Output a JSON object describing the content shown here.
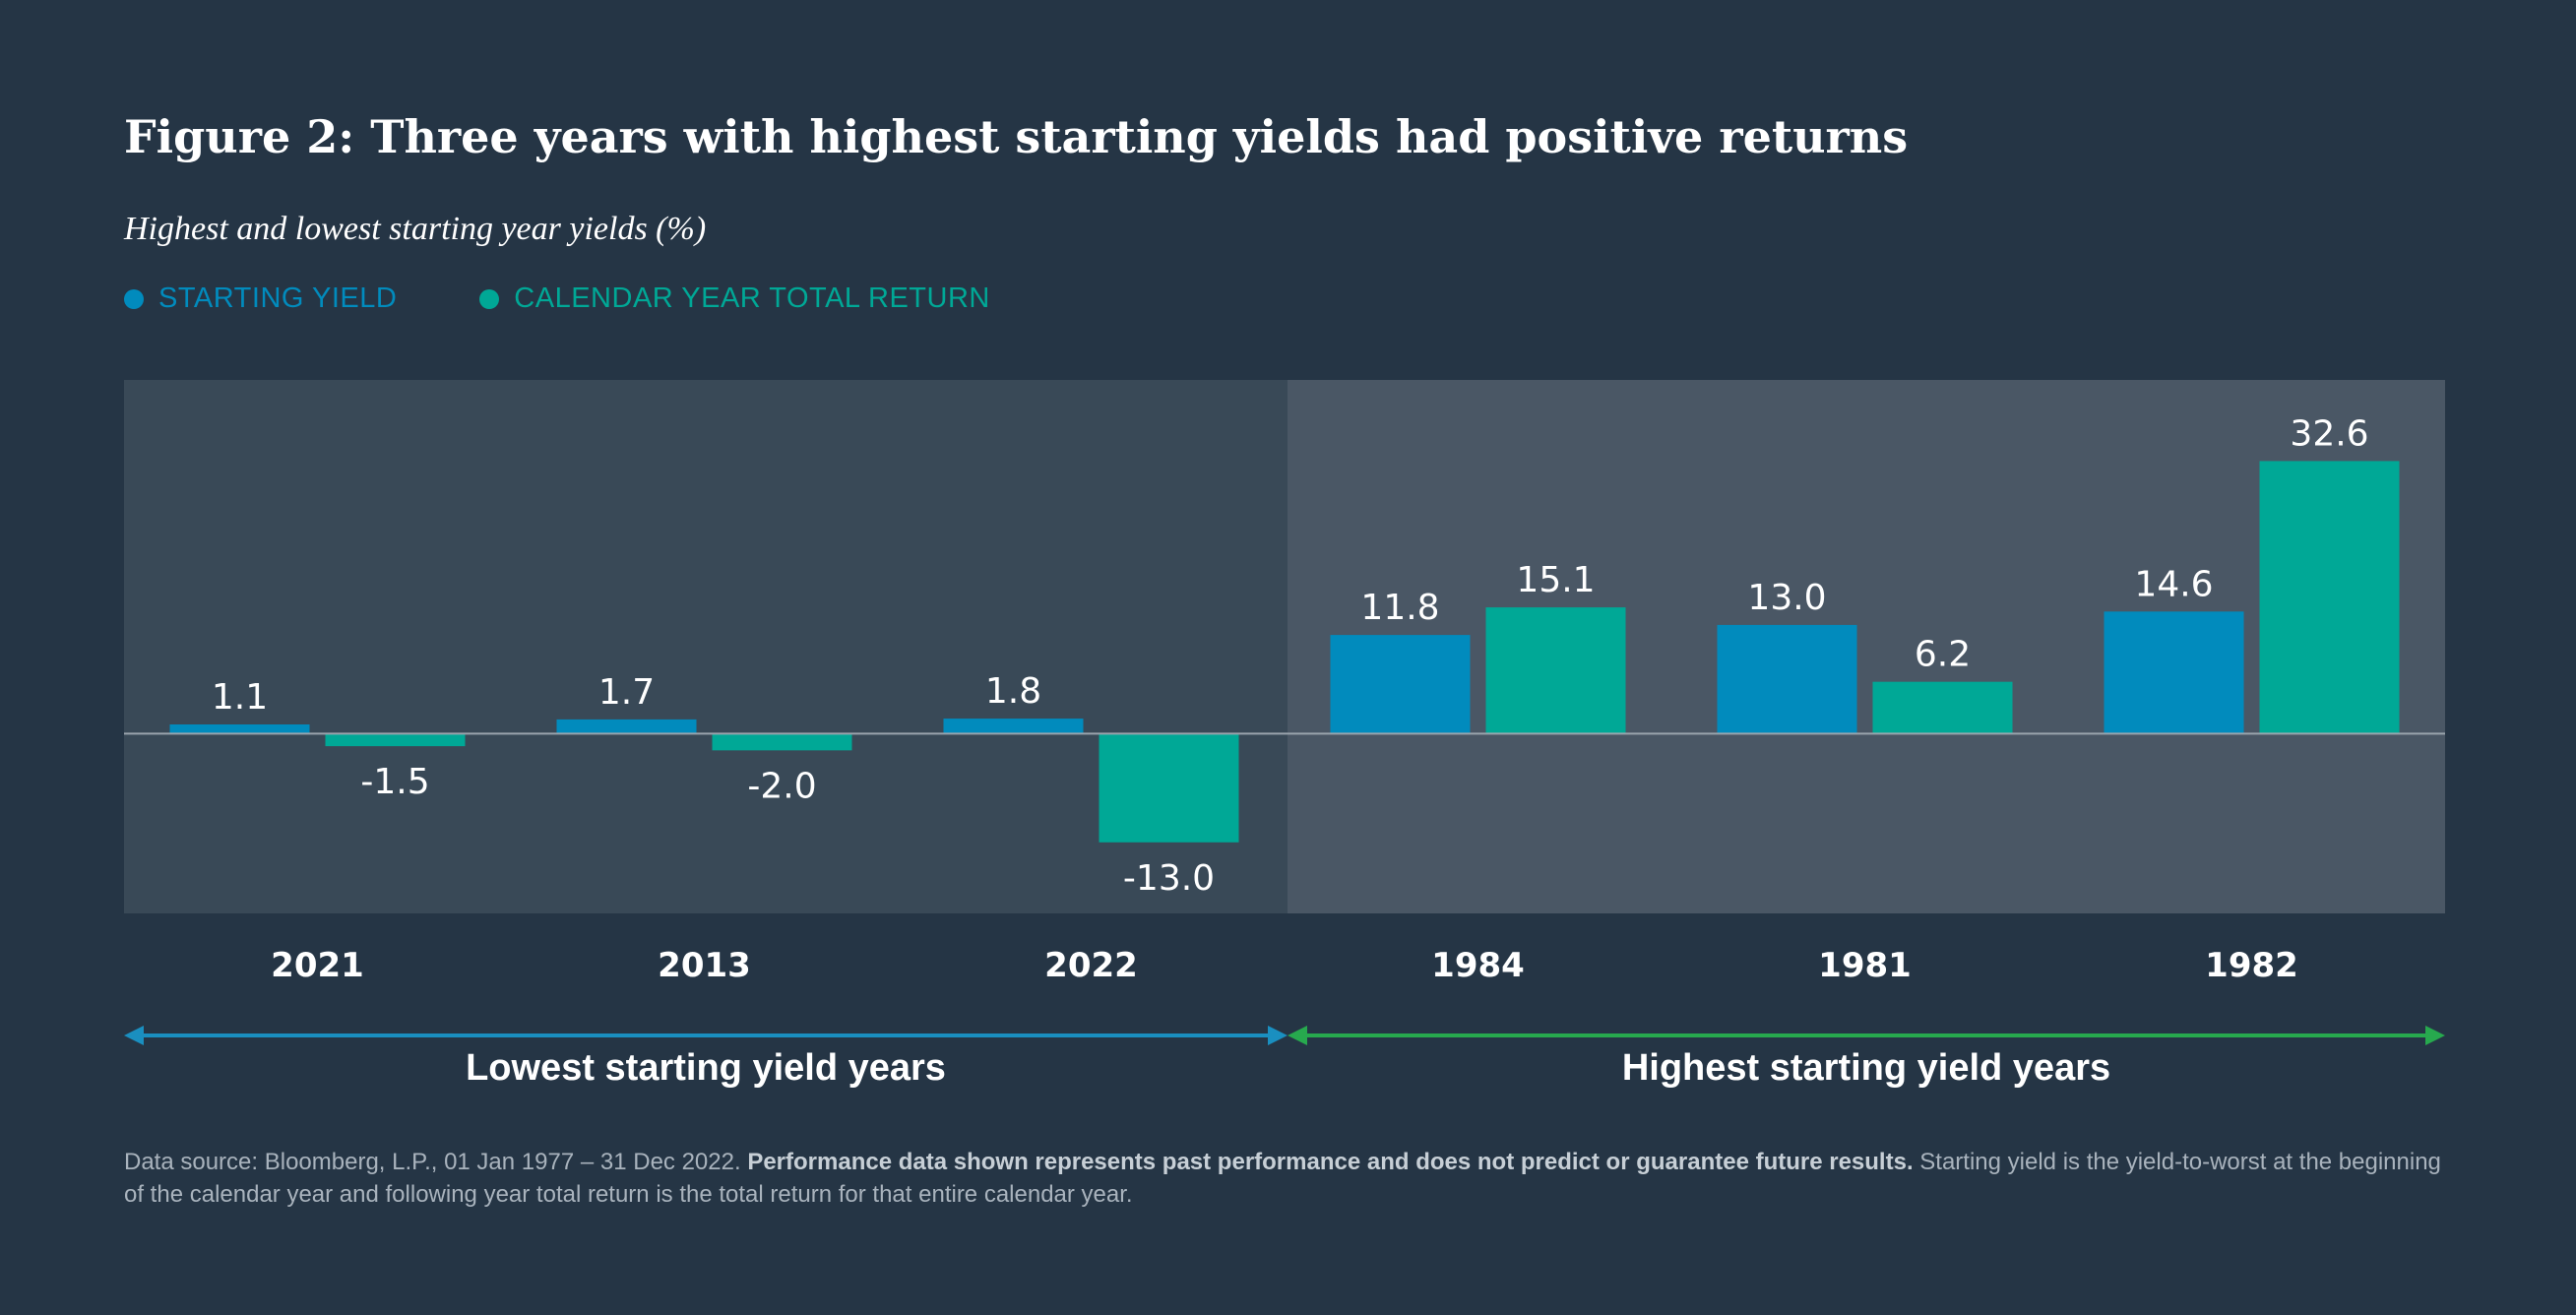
{
  "title": "Figure 2: Three years with highest starting yields had positive returns",
  "subtitle": "Highest and lowest starting year yields (%)",
  "colors": {
    "background": "#253545",
    "starting_yield": "#018bbd",
    "total_return": "#00a896",
    "panel_low": "#394957",
    "panel_high": "#4a5765",
    "arrow_low": "#1a8fc0",
    "arrow_high": "#27a94e"
  },
  "legend": {
    "starting_yield": "STARTING YIELD",
    "total_return": "CALENDAR YEAR TOTAL RETURN"
  },
  "chart_data": {
    "type": "bar",
    "title": "Figure 2: Three years with highest starting yields had positive returns",
    "subtitle": "Highest and lowest starting year yields (%)",
    "categories": [
      "2021",
      "2013",
      "2022",
      "1984",
      "1981",
      "1982"
    ],
    "series": [
      {
        "name": "STARTING YIELD",
        "values": [
          1.1,
          1.7,
          1.8,
          11.8,
          13.0,
          14.6
        ]
      },
      {
        "name": "CALENDAR YEAR TOTAL RETURN",
        "values": [
          -1.5,
          -2.0,
          -13.0,
          15.1,
          6.2,
          32.6
        ]
      }
    ],
    "ylim": [
      -21.5,
      42.3
    ],
    "xlabel": "",
    "ylabel": "",
    "grid": false,
    "legend_position": "top-left",
    "groups": [
      {
        "label": "Lowest starting yield years",
        "categories": [
          "2021",
          "2013",
          "2022"
        ]
      },
      {
        "label": "Highest starting yield years",
        "categories": [
          "1984",
          "1981",
          "1982"
        ]
      }
    ]
  },
  "footnote": {
    "source": "Data source: Bloomberg, L.P., 01 Jan 1977 – 31 Dec 2022.",
    "bold": "Performance data shown represents past performance and does not predict or guarantee future results.",
    "rest": "Starting yield is the yield-to-worst at the beginning of the calendar year and following year total return is the total return for that entire calendar year."
  }
}
